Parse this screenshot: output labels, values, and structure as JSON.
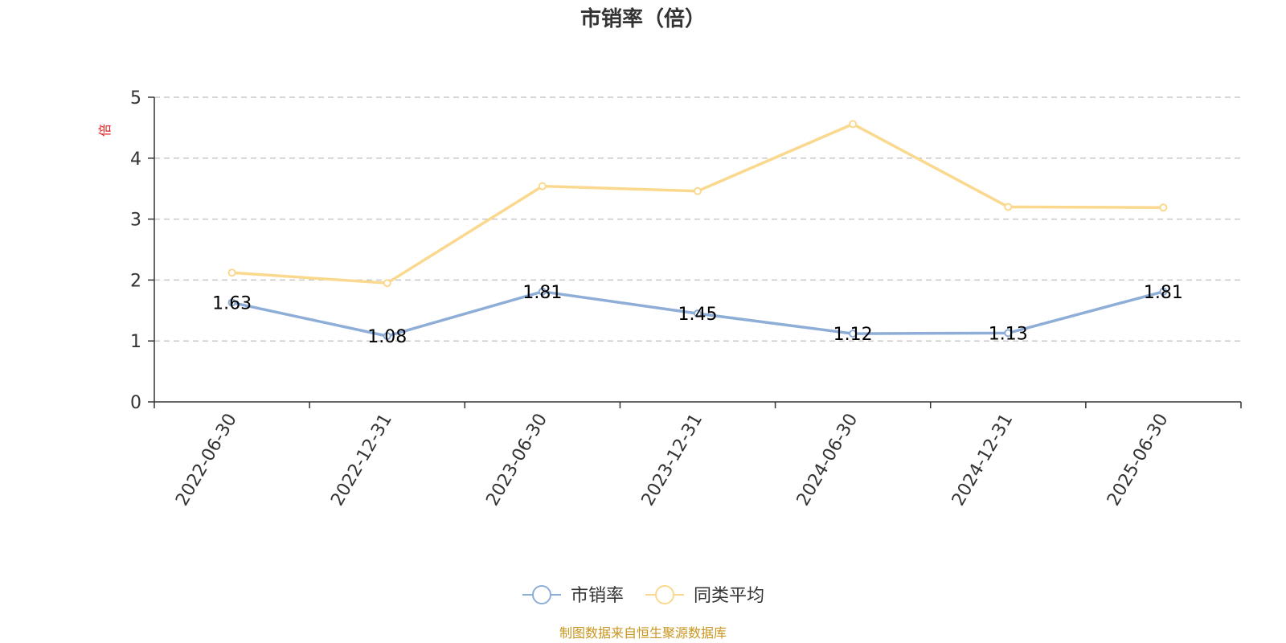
{
  "chart_data": {
    "type": "line",
    "title": "市销率（倍）",
    "ylabel": "倍",
    "xlabel": "",
    "categories": [
      "2022-06-30",
      "2022-12-31",
      "2023-06-30",
      "2023-12-31",
      "2024-06-30",
      "2024-12-31",
      "2025-06-30"
    ],
    "ylim": [
      0,
      5
    ],
    "yticks": [
      "0",
      "1",
      "2",
      "3",
      "4",
      "5"
    ],
    "grid": true,
    "legend_position": "bottom-center",
    "series": [
      {
        "name": "市销率",
        "color": "#8eaed8",
        "values": [
          1.63,
          1.08,
          1.81,
          1.45,
          1.12,
          1.13,
          1.81
        ],
        "labels": [
          "1.63",
          "1.08",
          "1.81",
          "1.45",
          "1.12",
          "1.13",
          "1.81"
        ]
      },
      {
        "name": "同类平均",
        "color": "#fad98f",
        "values": [
          2.12,
          1.95,
          3.54,
          3.46,
          4.56,
          3.2,
          3.19
        ]
      }
    ],
    "source": "制图数据来自恒生聚源数据库"
  }
}
